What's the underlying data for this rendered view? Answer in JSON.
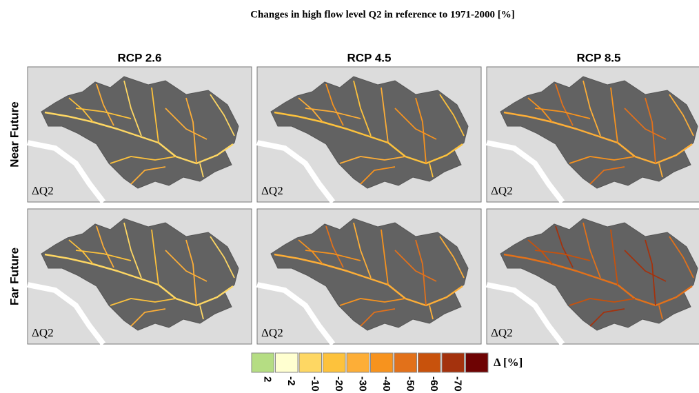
{
  "header": {
    "title": "Changes in high flow level Q2 in reference to 1971-2000 [%]"
  },
  "columns": [
    "RCP 2.6",
    "RCP 4.5",
    "RCP 8.5"
  ],
  "rows": [
    "Near Future",
    "Far Future"
  ],
  "panels": [
    {
      "label": "ΔQ2"
    },
    {
      "label": "ΔQ2"
    },
    {
      "label": "ΔQ2"
    },
    {
      "label": "ΔQ2"
    },
    {
      "label": "ΔQ2"
    },
    {
      "label": "ΔQ2"
    }
  ],
  "legend": {
    "unit": "Δ [%]",
    "colors": [
      "#b5dd83",
      "#ffffd0",
      "#fed763",
      "#fdc23c",
      "#fdae37",
      "#f7931e",
      "#e2711a",
      "#c8520c",
      "#a4320d",
      "#6e0303"
    ],
    "labels": [
      "2",
      "-2",
      "-10",
      "-20",
      "-30",
      "-40",
      "-50",
      "-60",
      "-70"
    ]
  }
}
